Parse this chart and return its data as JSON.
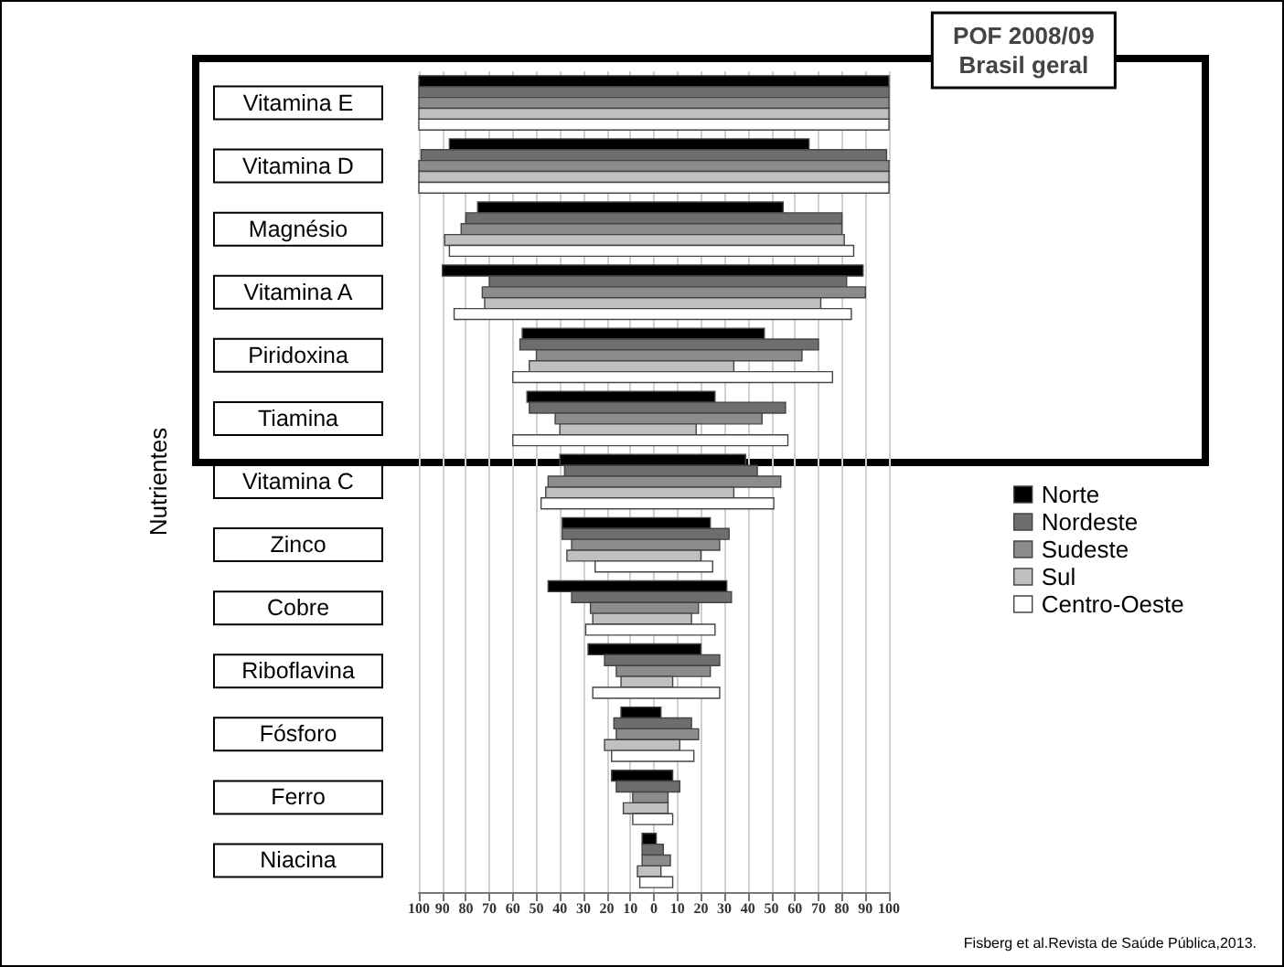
{
  "chart_data": {
    "type": "bar",
    "orientation": "horizontal",
    "title": "POF 2008/09",
    "subtitle": "Brasil geral",
    "ylabel": "Nutrientes",
    "categories": [
      "Vitamina E",
      "Vitamina D",
      "Magnésio",
      "Vitamina A",
      "Piridoxina",
      "Tiamina",
      "Vitamina C",
      "Zinco",
      "Cobre",
      "Riboflavina",
      "Fósforo",
      "Ferro",
      "Niacina"
    ],
    "series": [
      {
        "name": "Norte",
        "color": "#000000",
        "base": [
          -100,
          -87,
          -75,
          -90,
          -56,
          -54,
          -40,
          -39,
          -45,
          -28,
          -14,
          -18,
          -5
        ],
        "values": [
          200,
          153,
          130,
          179,
          103,
          80,
          79,
          63,
          76,
          48,
          17,
          26,
          6
        ]
      },
      {
        "name": "Nordeste",
        "color": "#6e6e6e",
        "base": [
          -100,
          -99,
          -80,
          -70,
          -57,
          -53,
          -38,
          -39,
          -35,
          -21,
          -17,
          -16,
          -5
        ],
        "values": [
          200,
          198,
          160,
          152,
          127,
          109,
          82,
          71,
          68,
          49,
          33,
          27,
          9
        ]
      },
      {
        "name": "Sudeste",
        "color": "#8c8c8c",
        "base": [
          -100,
          -100,
          -82,
          -73,
          -50,
          -42,
          -45,
          -35,
          -27,
          -16,
          -16,
          -9,
          -5
        ],
        "values": [
          200,
          200,
          162,
          163,
          113,
          88,
          99,
          63,
          46,
          40,
          35,
          15,
          12
        ]
      },
      {
        "name": "Sul",
        "color": "#c0c0c0",
        "base": [
          -100,
          -100,
          -89,
          -72,
          -53,
          -40,
          -46,
          -37,
          -26,
          -14,
          -21,
          -13,
          -7
        ],
        "values": [
          200,
          200,
          170,
          143,
          87,
          58,
          80,
          57,
          42,
          22,
          32,
          19,
          10
        ]
      },
      {
        "name": "Centro-Oeste",
        "color": "#ffffff",
        "base": [
          -100,
          -100,
          -87,
          -85,
          -60,
          -60,
          -48,
          -25,
          -29,
          -26,
          -18,
          -9,
          -6
        ],
        "values": [
          200,
          200,
          172,
          169,
          136,
          117,
          99,
          50,
          55,
          54,
          35,
          17,
          14
        ]
      }
    ],
    "xlim": [
      -100,
      100
    ],
    "xticks": [
      {
        "value": -100,
        "label": "100"
      },
      {
        "value": -90,
        "label": "90"
      },
      {
        "value": -80,
        "label": "80"
      },
      {
        "value": -70,
        "label": "70"
      },
      {
        "value": -60,
        "label": "60"
      },
      {
        "value": -50,
        "label": "50"
      },
      {
        "value": -40,
        "label": "40"
      },
      {
        "value": -30,
        "label": "30"
      },
      {
        "value": -20,
        "label": "20"
      },
      {
        "value": -10,
        "label": "10"
      },
      0,
      10,
      20,
      30,
      40,
      50,
      60,
      70,
      80,
      90,
      100
    ],
    "grid": "x",
    "legend": "right",
    "annotations": [
      "Fisberg et al.Revista de Saúde Pública,2013."
    ]
  }
}
